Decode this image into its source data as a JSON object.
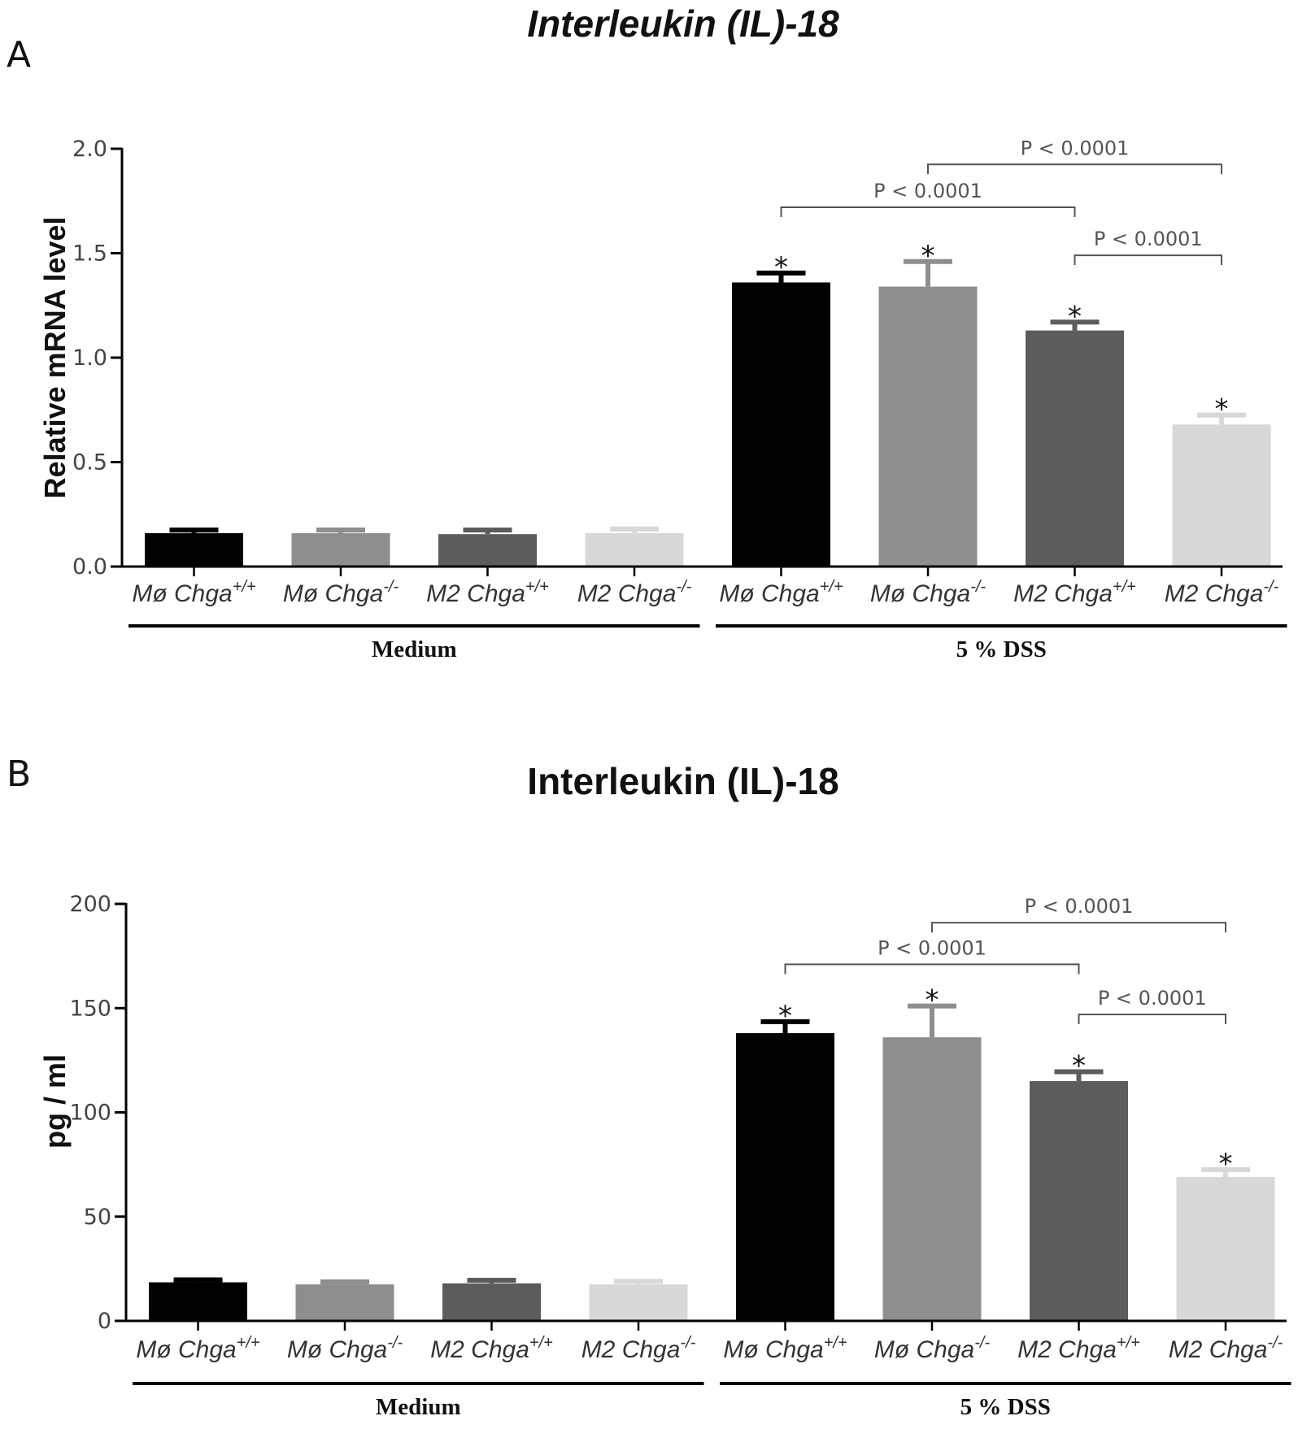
{
  "figure": {
    "background": "#ffffff"
  },
  "chart_data": [
    {
      "panel_label": "A",
      "type": "bar",
      "title": "Interleukin (IL)-18",
      "title_italic": true,
      "ylabel": "Relative mRNA level",
      "ylim": [
        0,
        2.0
      ],
      "yticks": [
        0.0,
        0.5,
        1.0,
        1.5,
        2.0
      ],
      "ytick_labels": [
        "0.0",
        "0.5",
        "1.0",
        "1.5",
        "2.0"
      ],
      "categories": [
        {
          "name": "Mø Chga",
          "sup": "+/+"
        },
        {
          "name": "Mø Chga",
          "sup": "-/-"
        },
        {
          "name": "M2 Chga",
          "sup": "+/+"
        },
        {
          "name": "M2 Chga",
          "sup": "-/-"
        },
        {
          "name": "Mø Chga",
          "sup": "+/+"
        },
        {
          "name": "Mø Chga",
          "sup": "-/-"
        },
        {
          "name": "M2 Chga",
          "sup": "+/+"
        },
        {
          "name": "M2 Chga",
          "sup": "-/-"
        }
      ],
      "values": [
        0.16,
        0.16,
        0.155,
        0.16,
        1.36,
        1.34,
        1.13,
        0.68
      ],
      "errors": [
        0.015,
        0.015,
        0.02,
        0.02,
        0.045,
        0.12,
        0.04,
        0.045
      ],
      "colors": [
        "#000000",
        "#8e8e8e",
        "#5c5c5c",
        "#d8d8d8",
        "#000000",
        "#8e8e8e",
        "#5c5c5c",
        "#d8d8d8"
      ],
      "significant": [
        false,
        false,
        false,
        false,
        true,
        true,
        true,
        true
      ],
      "star_text": "*",
      "groups": [
        {
          "label": "Medium",
          "start": 0,
          "end": 3
        },
        {
          "label": "5 % DSS",
          "start": 4,
          "end": 7
        }
      ],
      "comparisons": [
        {
          "from": 5,
          "to": 7,
          "label": "P < 0.0001",
          "level": 1.925
        },
        {
          "from": 4,
          "to": 6,
          "label": "P < 0.0001",
          "level": 1.72
        },
        {
          "from": 6,
          "to": 7,
          "label": "P < 0.0001",
          "level": 1.49
        }
      ]
    },
    {
      "panel_label": "B",
      "type": "bar",
      "title": "Interleukin (IL)-18",
      "title_italic": false,
      "ylabel": "pg / ml",
      "ylim": [
        0,
        200
      ],
      "yticks": [
        0,
        50,
        100,
        150,
        200
      ],
      "ytick_labels": [
        "0",
        "50",
        "100",
        "150",
        "200"
      ],
      "categories": [
        {
          "name": "Mø Chga",
          "sup": "+/+"
        },
        {
          "name": "Mø Chga",
          "sup": "-/-"
        },
        {
          "name": "M2 Chga",
          "sup": "+/+"
        },
        {
          "name": "M2 Chga",
          "sup": "-/-"
        },
        {
          "name": "Mø Chga",
          "sup": "+/+"
        },
        {
          "name": "Mø Chga",
          "sup": "-/-"
        },
        {
          "name": "M2 Chga",
          "sup": "+/+"
        },
        {
          "name": "M2 Chga",
          "sup": "-/-"
        }
      ],
      "values": [
        18.5,
        17.5,
        18,
        17.5,
        138,
        136,
        115,
        69
      ],
      "errors": [
        1.2,
        1.2,
        1.5,
        1.5,
        5.5,
        15,
        4.5,
        3.5
      ],
      "colors": [
        "#000000",
        "#8e8e8e",
        "#5c5c5c",
        "#d8d8d8",
        "#000000",
        "#8e8e8e",
        "#5c5c5c",
        "#d8d8d8"
      ],
      "significant": [
        false,
        false,
        false,
        false,
        true,
        true,
        true,
        true
      ],
      "star_text": "*",
      "groups": [
        {
          "label": "Medium",
          "start": 0,
          "end": 3
        },
        {
          "label": "5 % DSS",
          "start": 4,
          "end": 7
        }
      ],
      "comparisons": [
        {
          "from": 5,
          "to": 7,
          "label": "P < 0.0001",
          "level": 191
        },
        {
          "from": 4,
          "to": 6,
          "label": "P < 0.0001",
          "level": 171
        },
        {
          "from": 6,
          "to": 7,
          "label": "P < 0.0001",
          "level": 147
        }
      ]
    }
  ]
}
